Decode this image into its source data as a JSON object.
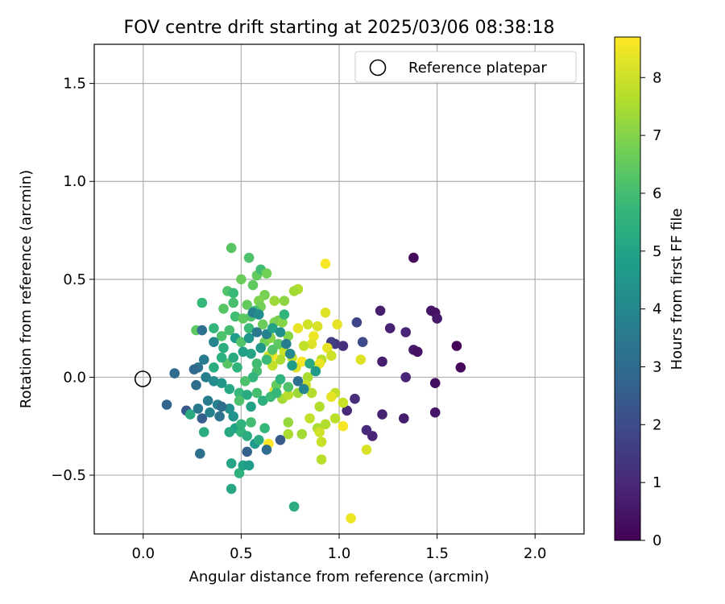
{
  "chart_data": {
    "type": "scatter",
    "title": "FOV centre drift starting at 2025/03/06 08:38:18",
    "xlabel": "Angular distance from reference (arcmin)",
    "ylabel": "Rotation from reference (arcmin)",
    "xlim": [
      -0.25,
      2.25
    ],
    "ylim": [
      -0.8,
      1.7
    ],
    "xticks": [
      0.0,
      0.5,
      1.0,
      1.5,
      2.0
    ],
    "xtick_labels": [
      "0.0",
      "0.5",
      "1.0",
      "1.5",
      "2.0"
    ],
    "yticks": [
      -0.5,
      0.0,
      0.5,
      1.0,
      1.5
    ],
    "ytick_labels": [
      "−0.5",
      "0.0",
      "0.5",
      "1.0",
      "1.5"
    ],
    "grid": true,
    "legend": {
      "location": "top-right",
      "entries": [
        {
          "label": "Reference platepar",
          "marker": "open-circle"
        }
      ]
    },
    "reference_point": {
      "x": 0.0,
      "y": 0.0
    },
    "colorbar": {
      "label": "Hours from first FF file",
      "colormap": "viridis",
      "range": [
        0,
        8.7
      ],
      "ticks": [
        0,
        1,
        2,
        3,
        4,
        5,
        6,
        7,
        8
      ],
      "tick_labels": [
        "0",
        "1",
        "2",
        "3",
        "4",
        "5",
        "6",
        "7",
        "8"
      ]
    },
    "colormap_stops": [
      "#440154",
      "#482878",
      "#3e4989",
      "#31688e",
      "#26828e",
      "#1f9e89",
      "#35b779",
      "#6ece58",
      "#b5de2b",
      "#fde725"
    ],
    "points": [
      [
        1.38,
        0.61,
        0.2
      ],
      [
        1.47,
        0.34,
        0.5
      ],
      [
        1.49,
        0.33,
        0.4
      ],
      [
        1.5,
        0.3,
        0.6
      ],
      [
        1.21,
        0.34,
        0.7
      ],
      [
        1.26,
        0.25,
        0.8
      ],
      [
        1.34,
        0.23,
        0.9
      ],
      [
        1.38,
        0.14,
        0.6
      ],
      [
        1.4,
        0.13,
        0.4
      ],
      [
        1.6,
        0.16,
        0.1
      ],
      [
        1.62,
        0.05,
        0.2
      ],
      [
        1.22,
        0.08,
        0.7
      ],
      [
        1.34,
        0.0,
        0.9
      ],
      [
        1.49,
        -0.03,
        0.3
      ],
      [
        1.49,
        -0.18,
        0.5
      ],
      [
        1.33,
        -0.21,
        0.7
      ],
      [
        1.22,
        -0.19,
        0.8
      ],
      [
        1.17,
        -0.3,
        0.9
      ],
      [
        1.14,
        -0.27,
        1.0
      ],
      [
        1.08,
        -0.11,
        1.1
      ],
      [
        1.04,
        -0.17,
        1.0
      ],
      [
        1.02,
        0.16,
        1.2
      ],
      [
        0.98,
        0.17,
        1.4
      ],
      [
        0.96,
        0.18,
        1.6
      ],
      [
        1.09,
        0.28,
        1.8
      ],
      [
        1.12,
        0.18,
        2.0
      ],
      [
        0.93,
        0.58,
        8.6
      ],
      [
        0.93,
        0.33,
        8.3
      ],
      [
        0.99,
        0.27,
        8.4
      ],
      [
        0.89,
        0.26,
        8.2
      ],
      [
        0.87,
        0.21,
        8.5
      ],
      [
        0.94,
        0.15,
        8.4
      ],
      [
        0.96,
        0.11,
        8.1
      ],
      [
        0.86,
        0.17,
        8.3
      ],
      [
        0.91,
        0.09,
        7.8
      ],
      [
        0.9,
        0.07,
        8.5
      ],
      [
        0.88,
        0.04,
        8.2
      ],
      [
        0.84,
        0.0,
        7.6
      ],
      [
        0.83,
        -0.04,
        8.0
      ],
      [
        0.81,
        0.08,
        8.6
      ],
      [
        0.78,
        0.05,
        8.3
      ],
      [
        0.76,
        0.1,
        8.0
      ],
      [
        0.82,
        0.16,
        7.9
      ],
      [
        0.79,
        0.25,
        8.4
      ],
      [
        0.84,
        0.27,
        8.1
      ],
      [
        0.79,
        0.45,
        7.7
      ],
      [
        0.77,
        0.44,
        7.5
      ],
      [
        0.72,
        0.39,
        7.2
      ],
      [
        0.67,
        0.39,
        7.4
      ],
      [
        0.74,
        0.21,
        7.1
      ],
      [
        0.71,
        0.16,
        7.3
      ],
      [
        0.72,
        0.13,
        8.0
      ],
      [
        0.7,
        0.09,
        7.6
      ],
      [
        0.66,
        0.11,
        8.6
      ],
      [
        0.64,
        0.11,
        8.1
      ],
      [
        0.66,
        0.06,
        7.9
      ],
      [
        0.67,
        -0.07,
        8.3
      ],
      [
        0.71,
        -0.11,
        7.5
      ],
      [
        0.74,
        -0.09,
        7.8
      ],
      [
        0.79,
        -0.08,
        7.4
      ],
      [
        0.86,
        -0.08,
        7.7
      ],
      [
        0.98,
        -0.08,
        7.9
      ],
      [
        0.96,
        -0.1,
        8.4
      ],
      [
        1.02,
        -0.13,
        8.0
      ],
      [
        1.02,
        -0.25,
        8.6
      ],
      [
        0.98,
        -0.21,
        7.8
      ],
      [
        0.93,
        -0.24,
        7.7
      ],
      [
        0.89,
        -0.26,
        7.6
      ],
      [
        0.85,
        -0.21,
        7.9
      ],
      [
        0.9,
        -0.28,
        8.1
      ],
      [
        0.81,
        -0.29,
        7.5
      ],
      [
        0.74,
        -0.23,
        7.3
      ],
      [
        0.74,
        -0.29,
        7.6
      ],
      [
        0.91,
        -0.33,
        8.0
      ],
      [
        0.91,
        -0.42,
        7.8
      ],
      [
        1.14,
        -0.37,
        8.2
      ],
      [
        0.64,
        -0.34,
        8.7
      ],
      [
        1.06,
        -0.72,
        8.5
      ],
      [
        1.11,
        0.09,
        8.3
      ],
      [
        0.9,
        -0.15,
        7.7
      ],
      [
        0.77,
        -0.66,
        5.4
      ],
      [
        0.45,
        0.66,
        6.4
      ],
      [
        0.54,
        0.61,
        6.2
      ],
      [
        0.56,
        0.47,
        6.5
      ],
      [
        0.58,
        0.52,
        6.6
      ],
      [
        0.6,
        0.55,
        6.0
      ],
      [
        0.63,
        0.53,
        6.8
      ],
      [
        0.5,
        0.5,
        6.7
      ],
      [
        0.43,
        0.44,
        6.3
      ],
      [
        0.46,
        0.43,
        5.9
      ],
      [
        0.62,
        0.42,
        6.9
      ],
      [
        0.59,
        0.39,
        7.0
      ],
      [
        0.6,
        0.36,
        6.8
      ],
      [
        0.53,
        0.37,
        6.6
      ],
      [
        0.57,
        0.34,
        6.0
      ],
      [
        0.46,
        0.38,
        6.1
      ],
      [
        0.3,
        0.38,
        5.8
      ],
      [
        0.41,
        0.35,
        6.4
      ],
      [
        0.47,
        0.31,
        6.0
      ],
      [
        0.51,
        0.3,
        6.5
      ],
      [
        0.55,
        0.31,
        6.3
      ],
      [
        0.61,
        0.27,
        6.7
      ],
      [
        0.67,
        0.28,
        7.0
      ],
      [
        0.69,
        0.29,
        6.9
      ],
      [
        0.71,
        0.28,
        7.1
      ],
      [
        0.54,
        0.25,
        5.9
      ],
      [
        0.44,
        0.24,
        6.1
      ],
      [
        0.4,
        0.21,
        6.2
      ],
      [
        0.36,
        0.25,
        5.7
      ],
      [
        0.27,
        0.24,
        6.5
      ],
      [
        0.3,
        0.24,
        3.2
      ],
      [
        0.36,
        0.18,
        4.0
      ],
      [
        0.41,
        0.15,
        5.5
      ],
      [
        0.47,
        0.2,
        4.8
      ],
      [
        0.5,
        0.18,
        6.3
      ],
      [
        0.55,
        0.12,
        5.1
      ],
      [
        0.58,
        0.07,
        6.0
      ],
      [
        0.62,
        0.18,
        6.8
      ],
      [
        0.65,
        0.2,
        7.1
      ],
      [
        0.69,
        0.17,
        6.5
      ],
      [
        0.66,
        0.14,
        6.3
      ],
      [
        0.63,
        0.09,
        5.9
      ],
      [
        0.58,
        0.03,
        6.1
      ],
      [
        0.56,
        0.0,
        5.7
      ],
      [
        0.52,
        -0.02,
        6.2
      ],
      [
        0.48,
        0.05,
        5.6
      ],
      [
        0.43,
        0.07,
        6.4
      ],
      [
        0.4,
        0.1,
        5.5
      ],
      [
        0.36,
        0.05,
        5.4
      ],
      [
        0.31,
        0.09,
        3.6
      ],
      [
        0.28,
        0.05,
        3.4
      ],
      [
        0.26,
        0.04,
        2.9
      ],
      [
        0.32,
        0.0,
        3.7
      ],
      [
        0.36,
        -0.02,
        4.2
      ],
      [
        0.4,
        -0.03,
        4.6
      ],
      [
        0.44,
        -0.06,
        5.2
      ],
      [
        0.49,
        -0.08,
        5.8
      ],
      [
        0.53,
        -0.09,
        5.3
      ],
      [
        0.58,
        -0.08,
        6.1
      ],
      [
        0.61,
        -0.12,
        5.5
      ],
      [
        0.65,
        -0.1,
        5.9
      ],
      [
        0.68,
        -0.04,
        6.6
      ],
      [
        0.55,
        -0.15,
        5.0
      ],
      [
        0.49,
        -0.12,
        6.2
      ],
      [
        0.44,
        -0.16,
        4.3
      ],
      [
        0.38,
        -0.14,
        3.8
      ],
      [
        0.33,
        -0.12,
        3.6
      ],
      [
        0.27,
        -0.04,
        3.1
      ],
      [
        0.22,
        -0.17,
        2.4
      ],
      [
        0.12,
        -0.14,
        2.8
      ],
      [
        0.16,
        0.02,
        3.0
      ],
      [
        0.24,
        -0.19,
        5.3
      ],
      [
        0.28,
        -0.16,
        3.5
      ],
      [
        0.3,
        -0.21,
        2.6
      ],
      [
        0.34,
        -0.18,
        3.9
      ],
      [
        0.39,
        -0.2,
        3.3
      ],
      [
        0.4,
        -0.15,
        3.1
      ],
      [
        0.46,
        -0.2,
        4.5
      ],
      [
        0.47,
        -0.26,
        5.0
      ],
      [
        0.5,
        -0.28,
        5.7
      ],
      [
        0.53,
        -0.3,
        5.4
      ],
      [
        0.57,
        -0.34,
        4.7
      ],
      [
        0.59,
        -0.32,
        5.3
      ],
      [
        0.62,
        -0.26,
        5.8
      ],
      [
        0.55,
        -0.23,
        6.0
      ],
      [
        0.5,
        -0.24,
        5.6
      ],
      [
        0.44,
        -0.28,
        5.2
      ],
      [
        0.31,
        -0.28,
        5.4
      ],
      [
        0.29,
        -0.39,
        3.2
      ],
      [
        0.45,
        -0.44,
        5.1
      ],
      [
        0.49,
        -0.49,
        5.6
      ],
      [
        0.51,
        -0.45,
        5.0
      ],
      [
        0.54,
        -0.45,
        4.8
      ],
      [
        0.45,
        -0.57,
        5.2
      ],
      [
        0.53,
        -0.38,
        2.7
      ],
      [
        0.63,
        -0.37,
        3.1
      ],
      [
        0.7,
        -0.32,
        2.5
      ],
      [
        0.56,
        0.33,
        3.8
      ],
      [
        0.59,
        0.32,
        4.2
      ],
      [
        0.54,
        0.2,
        4.5
      ],
      [
        0.51,
        0.13,
        4.9
      ],
      [
        0.46,
        0.1,
        5.3
      ],
      [
        0.6,
        0.15,
        4.6
      ],
      [
        0.63,
        0.22,
        3.9
      ],
      [
        0.58,
        0.23,
        3.5
      ],
      [
        0.66,
        0.25,
        5.0
      ],
      [
        0.7,
        0.23,
        4.4
      ],
      [
        0.73,
        0.17,
        3.7
      ],
      [
        0.75,
        0.12,
        4.1
      ],
      [
        0.76,
        0.06,
        4.8
      ],
      [
        0.79,
        -0.02,
        3.2
      ],
      [
        0.82,
        -0.06,
        4.0
      ],
      [
        0.85,
        0.07,
        5.3
      ],
      [
        0.88,
        0.03,
        4.7
      ],
      [
        0.7,
        -0.01,
        5.6
      ],
      [
        0.74,
        -0.05,
        6.2
      ],
      [
        0.68,
        -0.08,
        5.8
      ],
      [
        0.72,
        0.32,
        5.7
      ]
    ]
  }
}
